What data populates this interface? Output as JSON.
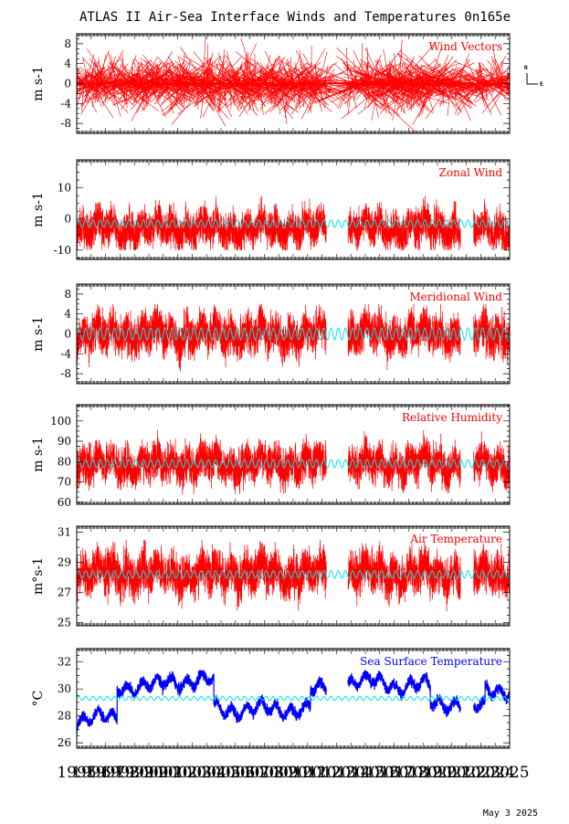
{
  "title": "ATLAS II Air-Sea Interface Winds and Temperatures 0n165e",
  "date_stamp": "May  3 2025",
  "compass": {
    "north": "N",
    "east": "E"
  },
  "colors": {
    "data": "#ff0000",
    "sst": "#0000ff",
    "climatology": "#00e5e5",
    "axis": "#000000"
  },
  "x_axis": {
    "range": [
      1995,
      2025
    ],
    "tick_labels": [
      "1995",
      "1996",
      "1997",
      "1998",
      "1999",
      "2000",
      "2001",
      "2002",
      "2003",
      "2004",
      "2005",
      "2006",
      "2007",
      "2008",
      "2009",
      "2010",
      "2011",
      "2012",
      "2013",
      "2014",
      "2015",
      "2016",
      "2017",
      "2018",
      "2019",
      "2020",
      "2021",
      "2022",
      "2023",
      "2024",
      "2025"
    ],
    "data_gaps": [
      [
        2012.3,
        2013.8
      ],
      [
        2021.6,
        2022.5
      ]
    ]
  },
  "chart_data": [
    {
      "id": "wind_vectors",
      "type": "vector",
      "label": "Wind Vectors",
      "ylabel": "m s-1",
      "ylim": [
        -10,
        10
      ],
      "yticks": [
        -8,
        -4,
        0,
        4,
        8
      ],
      "ytick_labels": [
        "-8",
        "-4",
        "0",
        "4",
        "8"
      ],
      "color": "#ff0000",
      "amplitude_by_period": [
        {
          "from": 1995,
          "to": 2000,
          "u": 6,
          "v": 5
        },
        {
          "from": 2000,
          "to": 2012,
          "u": 7,
          "v": 6
        },
        {
          "from": 2013,
          "to": 2021,
          "u": 8,
          "v": 6
        },
        {
          "from": 2021,
          "to": 2025,
          "u": 7,
          "v": 5
        }
      ]
    },
    {
      "id": "zonal_wind",
      "type": "line",
      "label": "Zonal Wind",
      "ylabel": "m s-1",
      "ylim": [
        -13,
        19
      ],
      "yticks": [
        -10,
        0,
        10
      ],
      "ytick_labels": [
        "-10",
        "0",
        "10"
      ],
      "color": "#ff0000",
      "climatology_mean": -1.5,
      "climatology_amp": 1.2,
      "typical_range": [
        -10,
        12
      ],
      "mean": -3
    },
    {
      "id": "meridional_wind",
      "type": "line",
      "label": "Meridional Wind",
      "ylabel": "m s-1",
      "ylim": [
        -10,
        10
      ],
      "yticks": [
        -8,
        -4,
        0,
        4,
        8
      ],
      "ytick_labels": [
        "-8",
        "-4",
        "0",
        "4",
        "8"
      ],
      "color": "#ff0000",
      "climatology_mean": 0,
      "climatology_amp": 1.2,
      "typical_range": [
        -9,
        6
      ],
      "mean": 0
    },
    {
      "id": "relative_humidity",
      "type": "line",
      "label": "Relative Humidity",
      "ylabel": "m s-1",
      "ylim": [
        59,
        108
      ],
      "yticks": [
        60,
        70,
        80,
        90,
        100
      ],
      "ytick_labels": [
        "60",
        "70",
        "80",
        "90",
        "100"
      ],
      "color": "#ff0000",
      "climatology_mean": 79,
      "climatology_amp": 2,
      "typical_range": [
        64,
        99
      ],
      "mean": 79
    },
    {
      "id": "air_temperature",
      "type": "line",
      "label": "Air Temperature",
      "ylabel": "m°s-1",
      "ylim": [
        24.8,
        31.4
      ],
      "yticks": [
        25,
        27,
        29,
        31
      ],
      "ytick_labels": [
        "25",
        "27",
        "29",
        "31"
      ],
      "color": "#ff0000",
      "climatology_mean": 28.2,
      "climatology_amp": 0.25,
      "typical_range": [
        25.3,
        30.5
      ],
      "mean": 28.3
    },
    {
      "id": "sea_surface_temperature",
      "type": "line",
      "label": "Sea Surface Temperature",
      "ylabel": "°C",
      "ylim": [
        25.6,
        33
      ],
      "yticks": [
        26,
        28,
        30,
        32
      ],
      "ytick_labels": [
        "26",
        "28",
        "30",
        "32"
      ],
      "color": "#0000ff",
      "climatology_mean": 29.3,
      "climatology_amp": 0.15,
      "typical_range": [
        26.4,
        31.4
      ],
      "mean": 29.4,
      "anomaly_by_period": [
        {
          "from": 1995,
          "to": 1997.8,
          "offset": -1.6
        },
        {
          "from": 1997.8,
          "to": 2001,
          "offset": 0.8
        },
        {
          "from": 2001,
          "to": 2004.5,
          "offset": 1.2
        },
        {
          "from": 2004.5,
          "to": 2008.3,
          "offset": -0.9
        },
        {
          "from": 2008.3,
          "to": 2011.2,
          "offset": -0.9
        },
        {
          "from": 2011.2,
          "to": 2012.3,
          "offset": 0.5
        },
        {
          "from": 2013.8,
          "to": 2017,
          "offset": 1.1
        },
        {
          "from": 2017,
          "to": 2019.5,
          "offset": 0.8
        },
        {
          "from": 2019.5,
          "to": 2021.6,
          "offset": -0.4
        },
        {
          "from": 2022.5,
          "to": 2023.3,
          "offset": -0.8
        },
        {
          "from": 2023.3,
          "to": 2025,
          "offset": 0.6
        }
      ]
    }
  ]
}
